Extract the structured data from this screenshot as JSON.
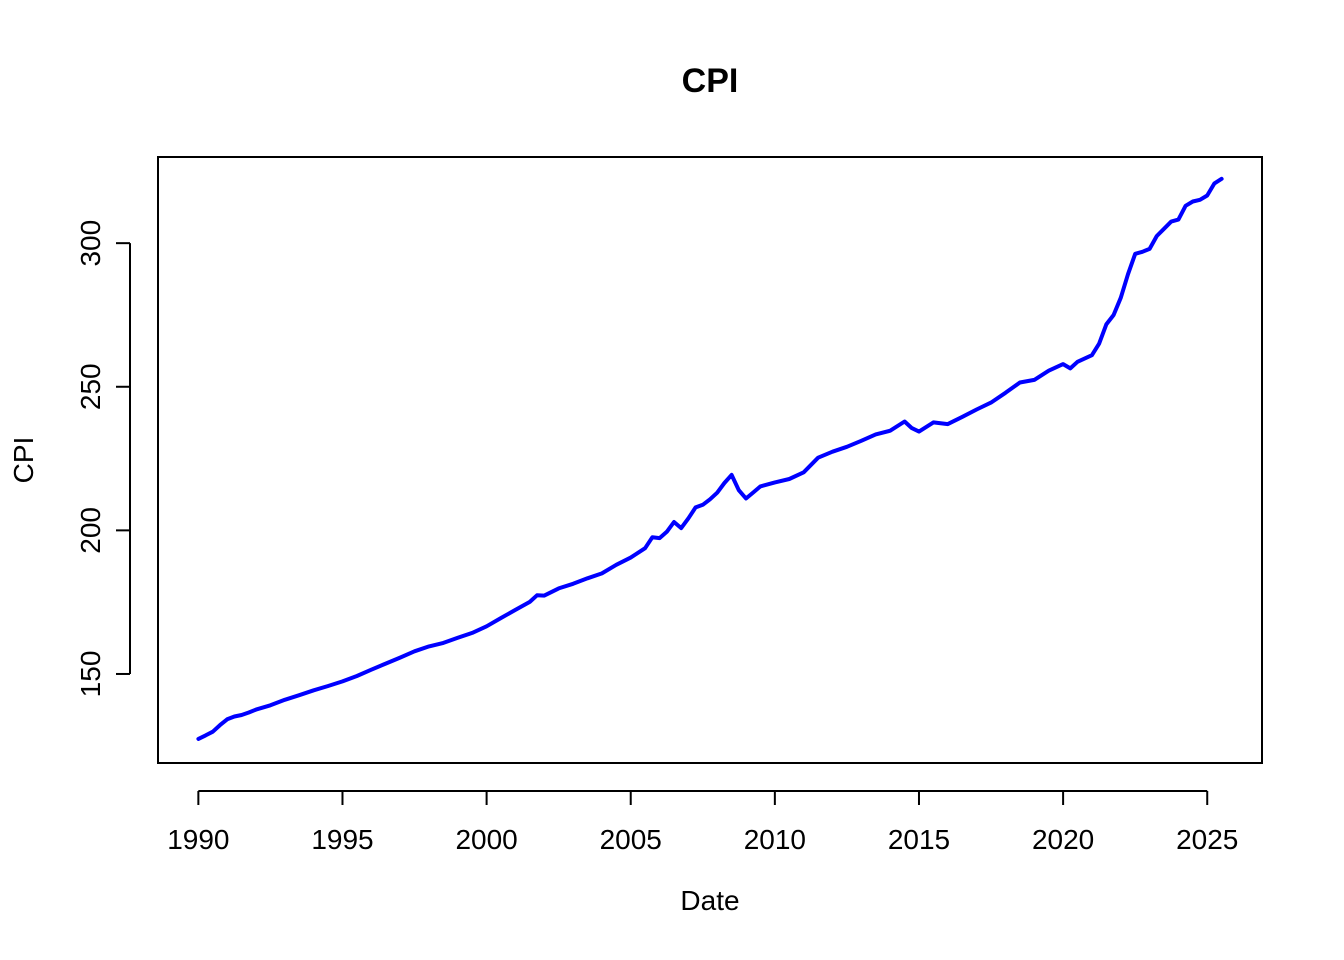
{
  "chart_data": {
    "type": "line",
    "title": "CPI",
    "xlabel": "Date",
    "ylabel": "CPI",
    "xlim": [
      1988.6,
      2026.9
    ],
    "ylim": [
      119,
      330
    ],
    "x_ticks": [
      1990,
      1995,
      2000,
      2005,
      2010,
      2015,
      2020,
      2025
    ],
    "y_ticks": [
      150,
      200,
      250,
      300
    ],
    "grid": false,
    "legend": "none",
    "series": [
      {
        "color": "#0000ff",
        "x": [
          1990.0,
          1990.25,
          1990.5,
          1990.75,
          1991.0,
          1991.25,
          1991.5,
          1991.75,
          1992.0,
          1992.5,
          1993.0,
          1993.5,
          1994.0,
          1994.5,
          1995.0,
          1995.5,
          1996.0,
          1996.5,
          1997.0,
          1997.5,
          1998.0,
          1998.5,
          1999.0,
          1999.5,
          2000.0,
          2000.5,
          2001.0,
          2001.5,
          2001.75,
          2002.0,
          2002.5,
          2003.0,
          2003.5,
          2004.0,
          2004.5,
          2005.0,
          2005.5,
          2005.75,
          2006.0,
          2006.25,
          2006.5,
          2006.75,
          2007.0,
          2007.25,
          2007.5,
          2007.75,
          2008.0,
          2008.25,
          2008.5,
          2008.75,
          2009.0,
          2009.25,
          2009.5,
          2010.0,
          2010.5,
          2011.0,
          2011.5,
          2012.0,
          2012.5,
          2013.0,
          2013.5,
          2014.0,
          2014.5,
          2014.75,
          2015.0,
          2015.5,
          2016.0,
          2016.5,
          2017.0,
          2017.5,
          2018.0,
          2018.5,
          2019.0,
          2019.5,
          2020.0,
          2020.25,
          2020.5,
          2021.0,
          2021.25,
          2021.5,
          2021.75,
          2022.0,
          2022.25,
          2022.5,
          2022.75,
          2023.0,
          2023.25,
          2023.5,
          2023.75,
          2024.0,
          2024.25,
          2024.5,
          2024.75,
          2025.0,
          2025.25,
          2025.5
        ],
        "y": [
          127.4,
          128.6,
          129.9,
          132.2,
          134.2,
          135.2,
          135.7,
          136.6,
          137.6,
          139.1,
          141.0,
          142.6,
          144.3,
          145.8,
          147.4,
          149.3,
          151.5,
          153.6,
          155.7,
          157.9,
          159.6,
          160.8,
          162.6,
          164.3,
          166.6,
          169.5,
          172.3,
          175.1,
          177.4,
          177.3,
          179.8,
          181.4,
          183.3,
          185.0,
          188.0,
          190.5,
          193.8,
          197.6,
          197.3,
          199.5,
          202.9,
          200.8,
          204.2,
          208.0,
          208.9,
          210.8,
          213.1,
          216.5,
          219.3,
          214.0,
          211.1,
          213.2,
          215.3,
          216.7,
          217.9,
          220.2,
          225.3,
          227.4,
          229.1,
          231.2,
          233.4,
          234.7,
          237.9,
          235.6,
          234.4,
          237.6,
          237.0,
          239.5,
          242.1,
          244.5,
          247.9,
          251.5,
          252.4,
          255.6,
          257.9,
          256.4,
          258.7,
          261.0,
          265.0,
          271.7,
          275.0,
          281.0,
          289.2,
          296.3,
          297.0,
          298.0,
          302.5,
          305.0,
          307.5,
          308.2,
          313.0,
          314.5,
          315.1,
          316.6,
          320.8,
          322.4
        ]
      }
    ]
  }
}
